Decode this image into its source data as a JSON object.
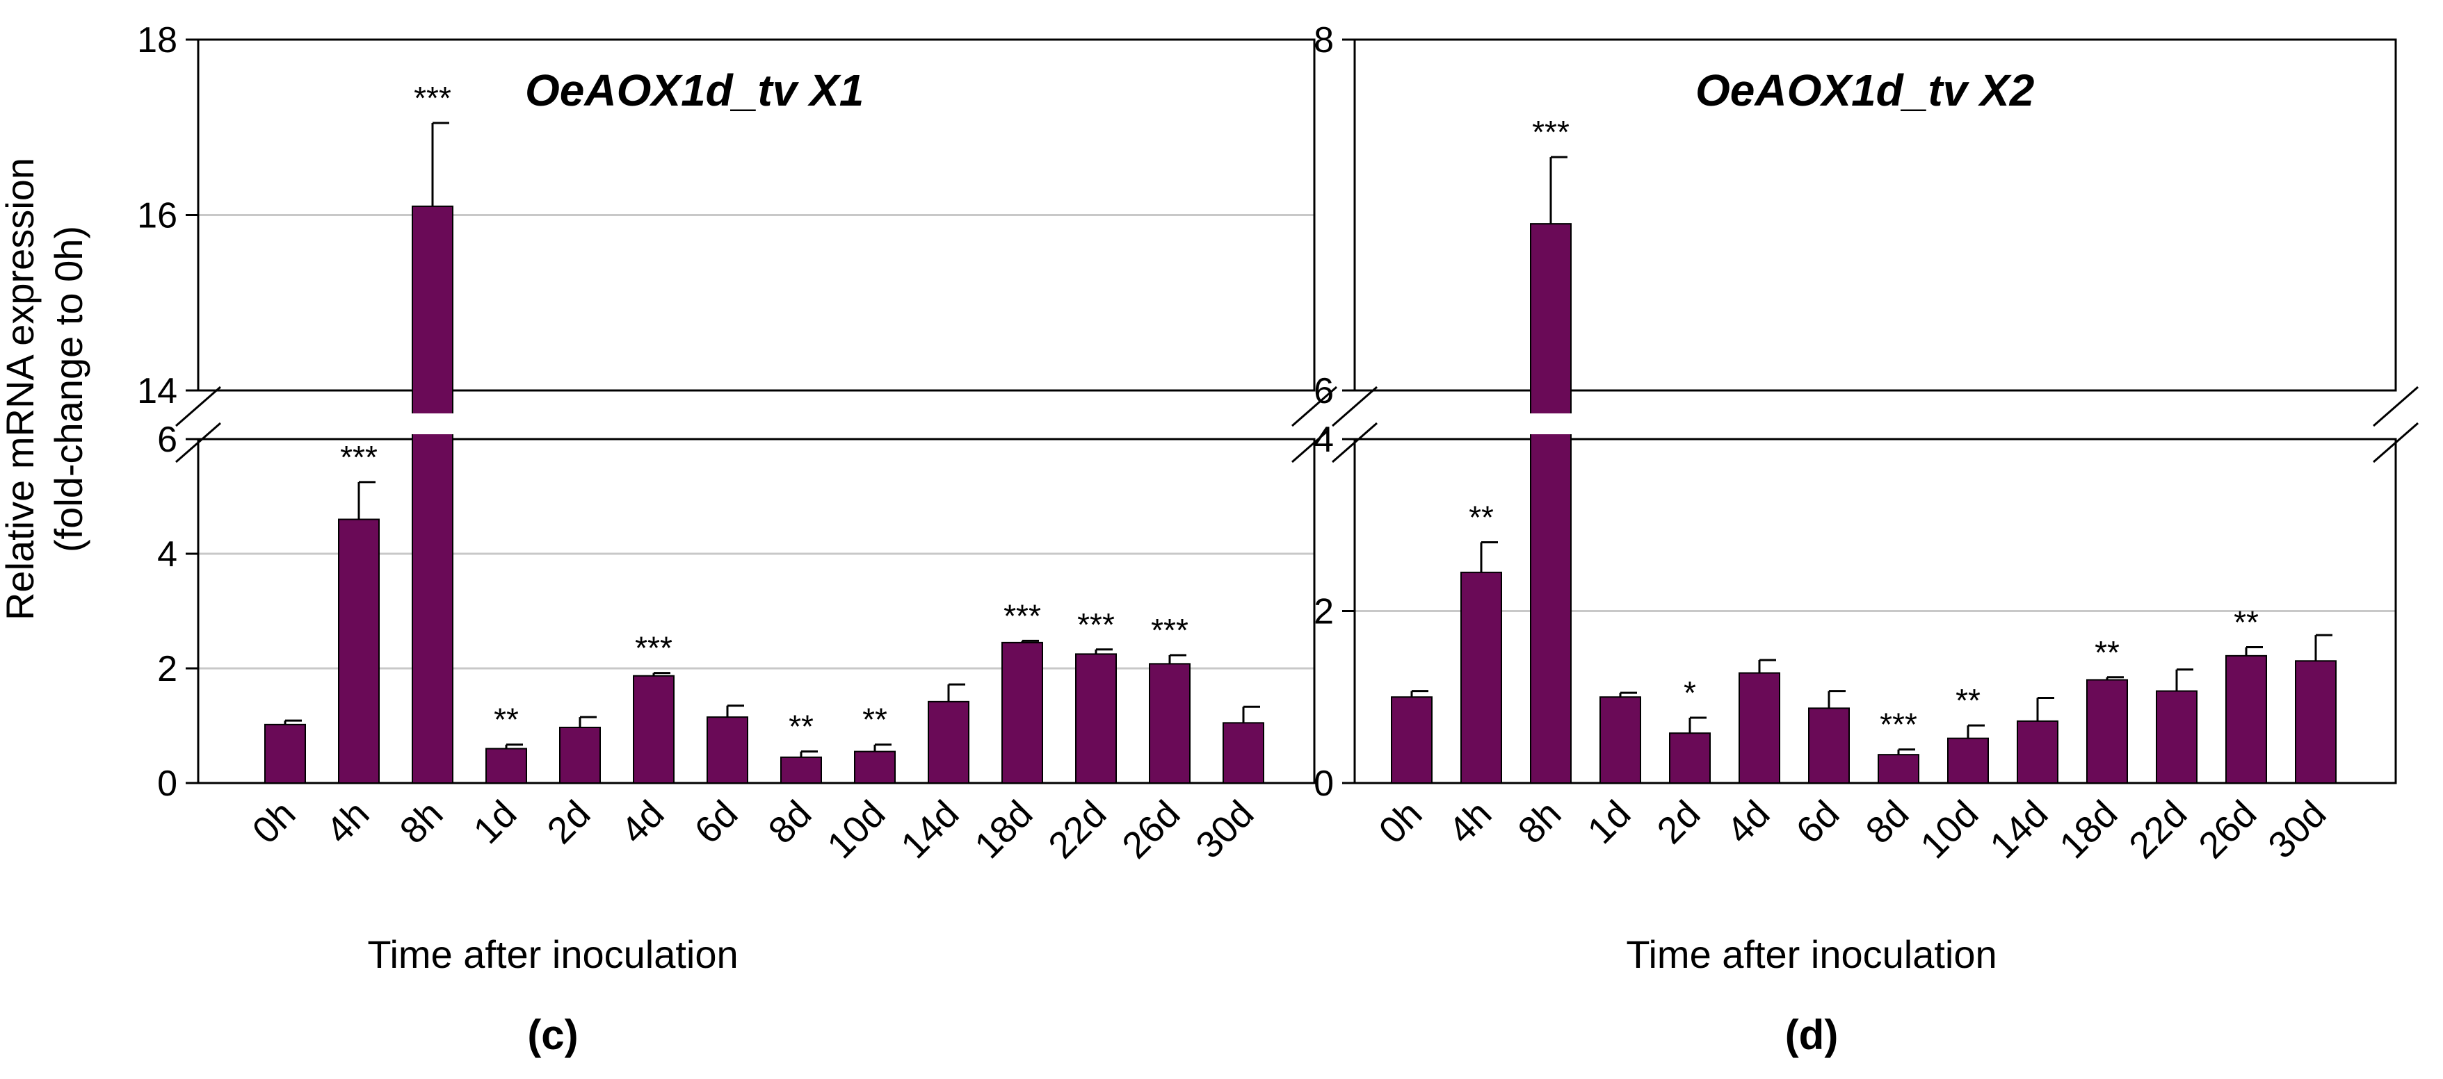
{
  "figure": {
    "ylabel_line1": "Relative mRNA expression",
    "ylabel_line2": "(fold-change to 0h)"
  },
  "chart_data": [
    {
      "type": "bar",
      "panel_label": "(c)",
      "title": "OeAOX1d_tv X1",
      "xlabel": "Time after inoculation",
      "ylabel": "Relative mRNA expression (fold-change to 0h)",
      "bar_color": "#6a0a57",
      "broken_axis": true,
      "lower_ylim": [
        0,
        6
      ],
      "upper_ylim": [
        14,
        18
      ],
      "lower_ticks": [
        "0",
        "2",
        "4",
        "6"
      ],
      "upper_ticks": [
        "14",
        "16",
        "18"
      ],
      "categories": [
        "0h",
        "4h",
        "8h",
        "1d",
        "2d",
        "4d",
        "6d",
        "8d",
        "10d",
        "14d",
        "18d",
        "22d",
        "26d",
        "30d"
      ],
      "values": [
        1.02,
        4.6,
        16.1,
        0.6,
        0.97,
        1.87,
        1.15,
        0.45,
        0.55,
        1.42,
        2.45,
        2.25,
        2.08,
        1.05
      ],
      "errors": [
        0.07,
        0.65,
        0.95,
        0.07,
        0.18,
        0.05,
        0.2,
        0.1,
        0.12,
        0.3,
        0.03,
        0.08,
        0.15,
        0.28
      ],
      "significance": [
        "",
        "***",
        "***",
        "**",
        "",
        "***",
        "",
        "**",
        "**",
        "",
        "***",
        "***",
        "***",
        ""
      ]
    },
    {
      "type": "bar",
      "panel_label": "(d)",
      "title": "OeAOX1d_tv X2",
      "xlabel": "Time after inoculation",
      "ylabel": "",
      "bar_color": "#6a0a57",
      "broken_axis": true,
      "lower_ylim": [
        0,
        4
      ],
      "upper_ylim": [
        6,
        8
      ],
      "lower_ticks": [
        "0",
        "2",
        "4"
      ],
      "upper_ticks": [
        "6",
        "8"
      ],
      "categories": [
        "0h",
        "4h",
        "8h",
        "1d",
        "2d",
        "4d",
        "6d",
        "8d",
        "10d",
        "14d",
        "18d",
        "22d",
        "26d",
        "30d"
      ],
      "values": [
        1.0,
        2.45,
        6.95,
        1.0,
        0.58,
        1.28,
        0.87,
        0.33,
        0.52,
        0.72,
        1.2,
        1.07,
        1.48,
        1.42
      ],
      "errors": [
        0.07,
        0.35,
        0.38,
        0.05,
        0.18,
        0.15,
        0.2,
        0.06,
        0.15,
        0.27,
        0.03,
        0.25,
        0.1,
        0.3
      ],
      "significance": [
        "",
        "**",
        "***",
        "",
        "*",
        "",
        "",
        "***",
        "**",
        "",
        "**",
        "",
        "**",
        ""
      ]
    }
  ]
}
